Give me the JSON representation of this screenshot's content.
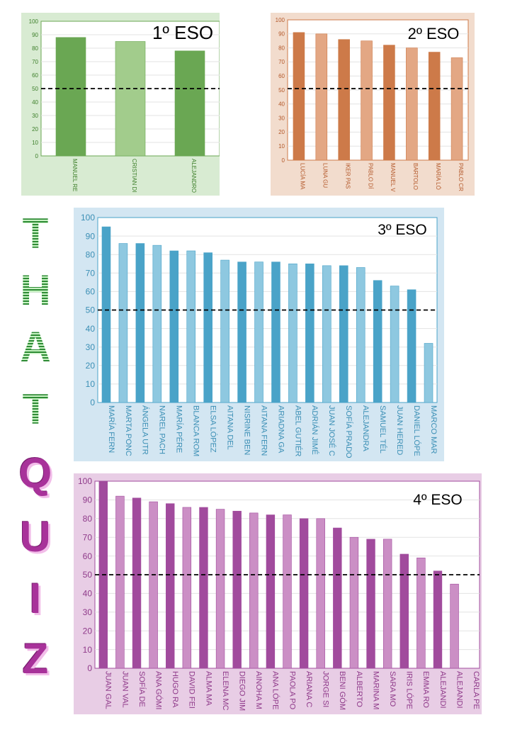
{
  "side_title": {
    "green_letters": [
      "T",
      "H",
      "A",
      "T"
    ],
    "purple_letters": [
      "Q",
      "U",
      "I",
      "Z"
    ]
  },
  "colors": {
    "eso1": {
      "bg": "#d8ebd2",
      "dark": "#6aa753",
      "light": "#a2cc8c",
      "text": "#3d7f2a",
      "plotBorder": "#6aa753"
    },
    "eso2": {
      "bg": "#f2dccd",
      "dark": "#cd7a49",
      "light": "#e3a784",
      "text": "#b3582a",
      "plotBorder": "#cd7a49"
    },
    "eso3": {
      "bg": "#d3e6f2",
      "dark": "#4aa3c8",
      "light": "#8ec8e0",
      "text": "#3b8fb5",
      "plotBorder": "#4aa3c8"
    },
    "eso4": {
      "bg": "#e8cde5",
      "dark": "#a14b9d",
      "light": "#cb8fc5",
      "text": "#8f3a8a",
      "plotBorder": "#a14b9d"
    }
  },
  "chart_data": [
    {
      "id": "eso1",
      "type": "bar",
      "title": "1º ESO",
      "ylim": [
        0,
        100
      ],
      "yticks": [
        0,
        10,
        20,
        30,
        40,
        50,
        60,
        70,
        80,
        90,
        100
      ],
      "reference_line": 50,
      "categories": [
        "MANUEL RE",
        "CRISTIAN DI",
        "ALEJANDRO"
      ],
      "values": [
        88,
        85,
        78
      ]
    },
    {
      "id": "eso2",
      "type": "bar",
      "title": "2º ESO",
      "ylim": [
        0,
        100
      ],
      "yticks": [
        0,
        10,
        20,
        30,
        40,
        50,
        60,
        70,
        80,
        90,
        100
      ],
      "reference_line": 51,
      "categories": [
        "LUCÍA MA",
        "LUNA GU",
        "IKER PAS",
        "PABLO DÍ",
        "MANUEL V",
        "BARTOLO",
        "MARÍA LÓ",
        "PABLO CR"
      ],
      "values": [
        91,
        90,
        86,
        85,
        82,
        80,
        77,
        73
      ]
    },
    {
      "id": "eso3",
      "type": "bar",
      "title": "3º ESO",
      "ylim": [
        0,
        100
      ],
      "yticks": [
        0,
        10,
        20,
        30,
        40,
        50,
        60,
        70,
        80,
        90,
        100
      ],
      "reference_line": 50,
      "categories": [
        "MARÍA FERN",
        "MARTA PONC",
        "ÁNGELA UTR",
        "NAREL PACH",
        "MARÍA PÉRE",
        "BLANCA ROM",
        "ELSA LÓPEZ",
        "AITANA DEL",
        "NISRINE BEN",
        "AITANA FERN",
        "ARIADNA GA",
        "ABEL GUTIÉR",
        "ADRIÁN JIMÉ",
        "JUAN JOSÉ C",
        "SOFÍA PRADO",
        "ALEJANDRA",
        "SAMUEL TÉL",
        "JUAN HERED",
        "DANIEL LÓPE",
        "MARCO MAR"
      ],
      "values": [
        95,
        86,
        86,
        85,
        82,
        82,
        81,
        77,
        76,
        76,
        76,
        75,
        75,
        74,
        74,
        73,
        66,
        63,
        61,
        32
      ]
    },
    {
      "id": "eso4",
      "type": "bar",
      "title": "4º ESO",
      "ylim": [
        0,
        100
      ],
      "yticks": [
        0,
        10,
        20,
        30,
        40,
        50,
        60,
        70,
        80,
        90,
        100
      ],
      "reference_line": 50,
      "categories": [
        "JUAN GAL",
        "JUAN VAL",
        "SOFÍA DE",
        "ANA GÓMI",
        "HUGO RA",
        "DAVID FEI",
        "ALMA MA",
        "ELENA MC",
        "DIEGO JIM",
        "AINOHA M",
        "ANA LÓPE",
        "PAOLA PO",
        "ARIANA C",
        "JORGE SI",
        "BENI GÓM",
        "ALBERTO",
        "MARINA M",
        "SARA MO",
        "IRIS LÓPE",
        "EMMA RO",
        "ALEJANDI",
        "ALEJANDI",
        "CARLA PE"
      ],
      "values": [
        100,
        92,
        91,
        89,
        88,
        86,
        86,
        85,
        84,
        83,
        82,
        82,
        80,
        80,
        75,
        70,
        69,
        69,
        61,
        59,
        52,
        45,
        0
      ]
    }
  ]
}
